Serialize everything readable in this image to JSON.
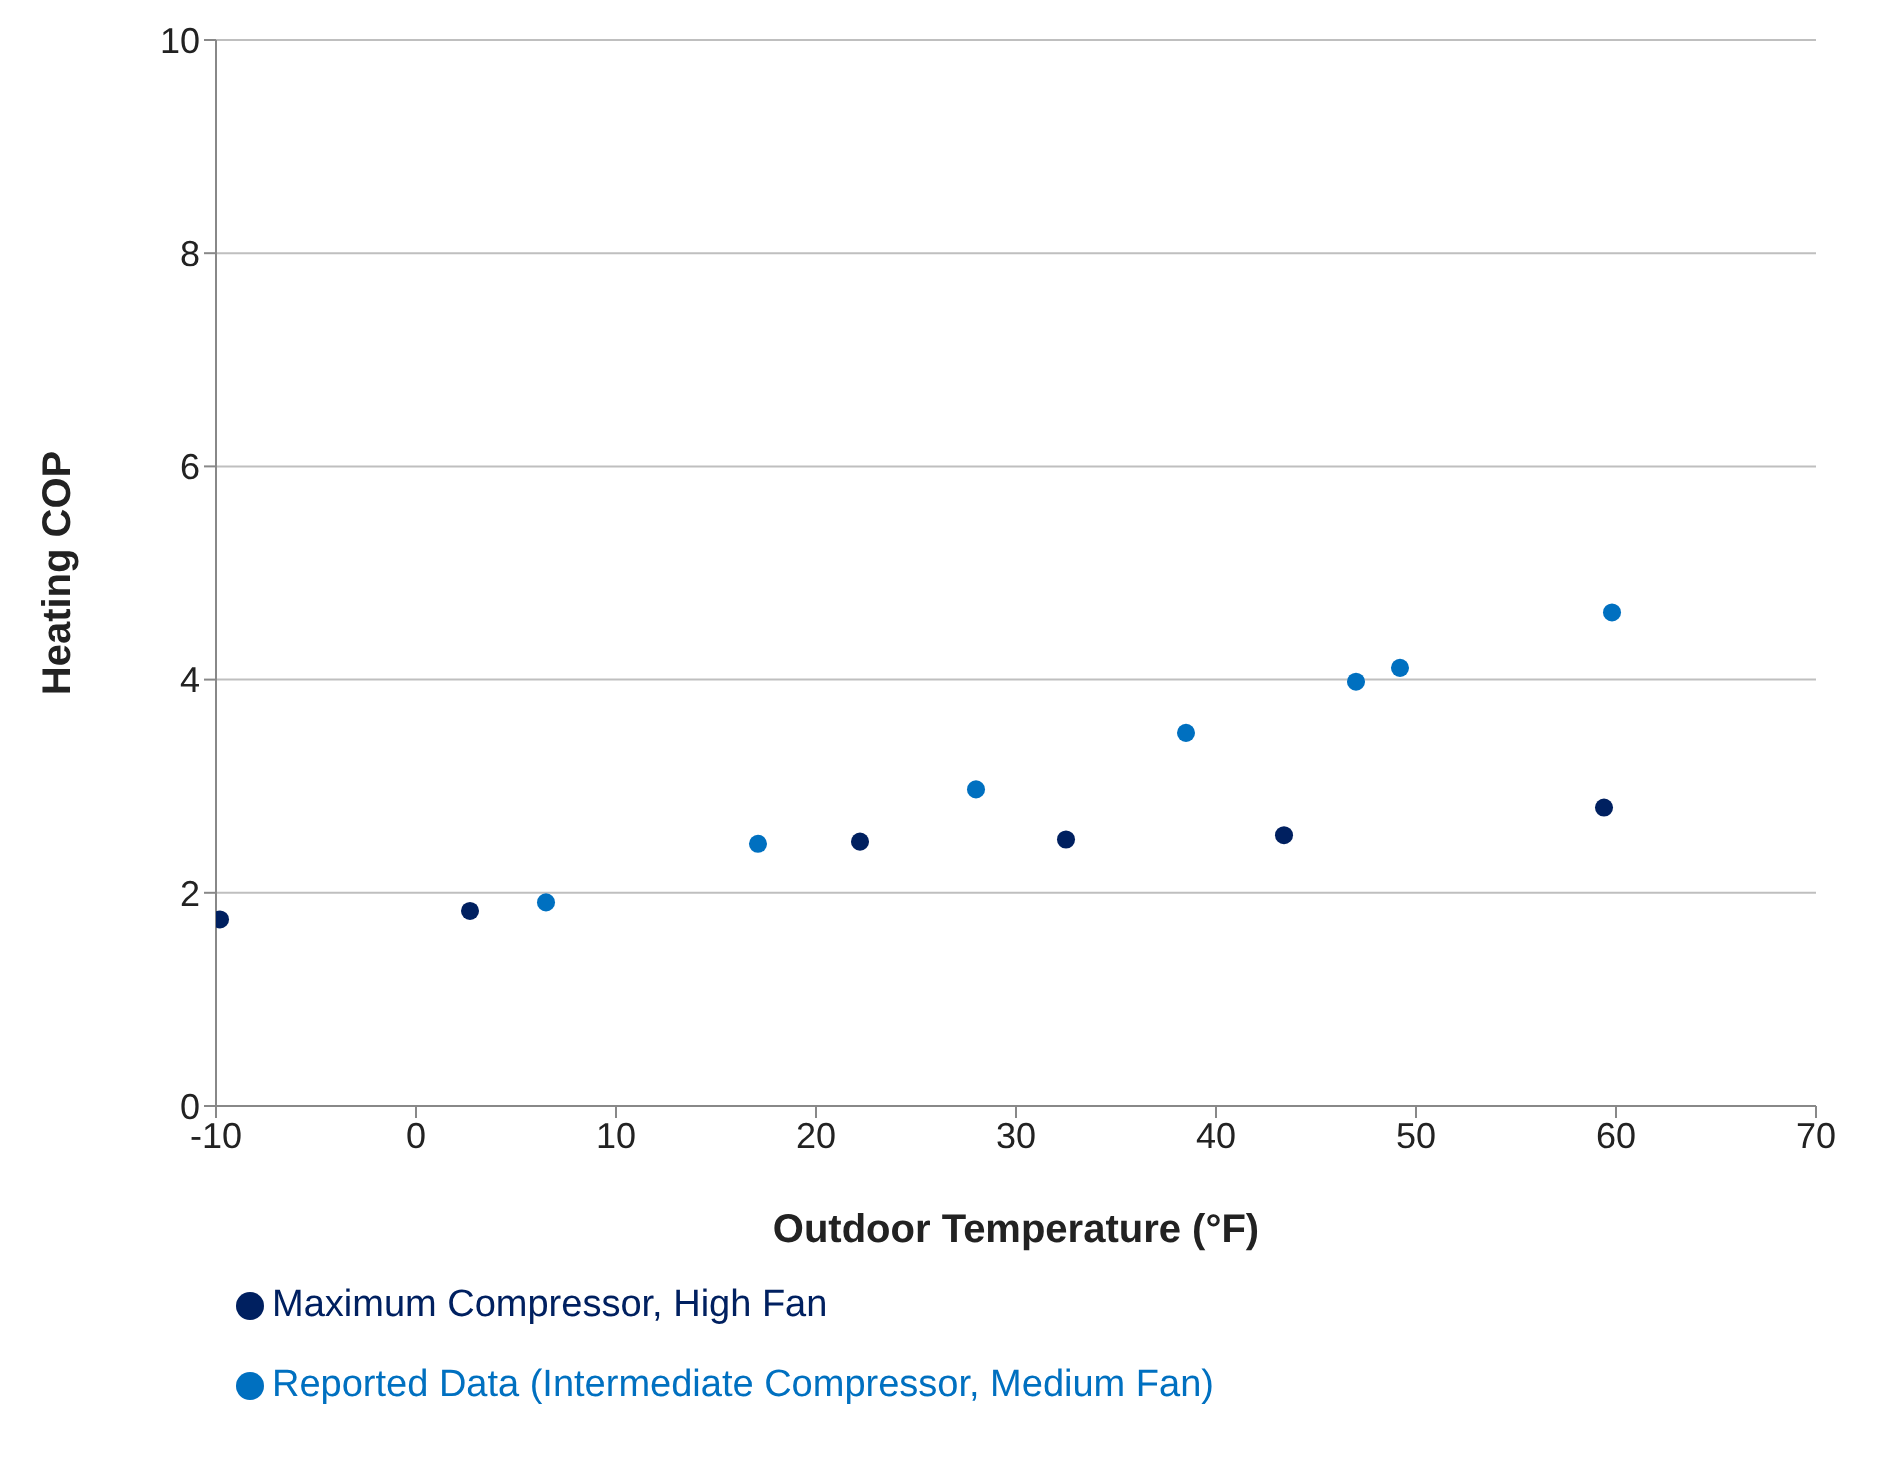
{
  "chart_data": {
    "type": "scatter",
    "xlabel": "Outdoor Temperature (°F)",
    "ylabel": "Heating COP",
    "xlim": [
      -10,
      70
    ],
    "xticks": [
      -10,
      0,
      10,
      20,
      30,
      40,
      50,
      60,
      70
    ],
    "ylim": [
      0,
      10
    ],
    "yticks": [
      0,
      2,
      4,
      6,
      8,
      10
    ],
    "grid": "y",
    "legend": "bottom",
    "marker": "circle",
    "series": [
      {
        "name": "Maximum Compressor, High Fan",
        "color": "#002060",
        "x": [
          -9.8,
          2.7,
          22.2,
          32.5,
          43.4,
          59.4
        ],
        "values": [
          1.75,
          1.83,
          2.48,
          2.5,
          2.54,
          2.8
        ]
      },
      {
        "name": "Reported Data  (Intermediate Compressor, Medium Fan)",
        "color": "#0070c0",
        "x": [
          6.5,
          17.1,
          28.0,
          38.5,
          47.0,
          49.2,
          59.8
        ],
        "values": [
          1.91,
          2.46,
          2.97,
          3.5,
          3.98,
          4.11,
          4.63
        ]
      }
    ]
  }
}
